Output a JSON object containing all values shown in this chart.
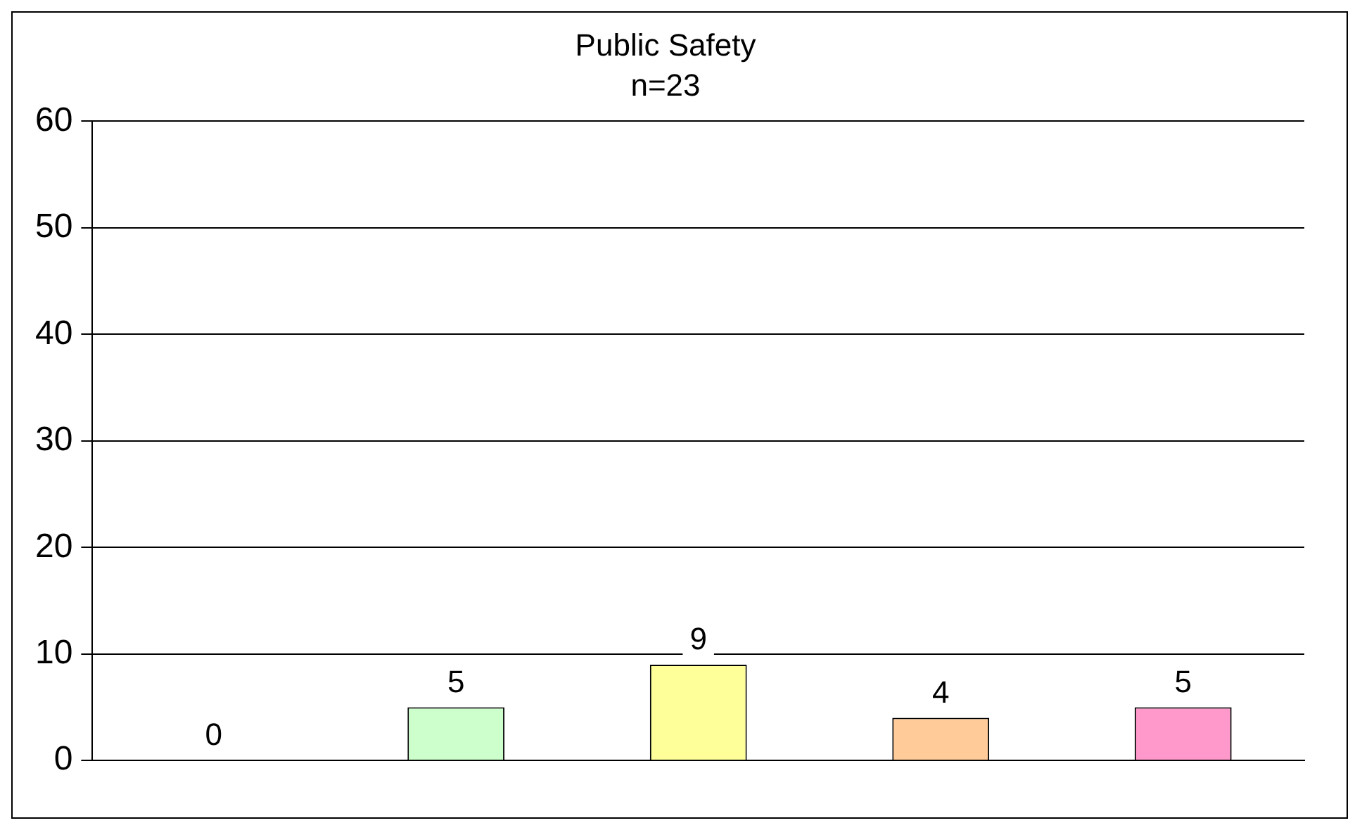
{
  "chart_data": {
    "type": "bar",
    "title": "Public Safety",
    "subtitle": "n=23",
    "categories": [
      null,
      null,
      null,
      null,
      null
    ],
    "values": [
      0,
      5,
      9,
      4,
      5
    ],
    "colors": [
      "#99ccff",
      "#ccffcc",
      "#ffff99",
      "#ffcc99",
      "#ff99cc"
    ],
    "ylim": [
      0,
      60
    ],
    "yticks": [
      0,
      10,
      20,
      30,
      40,
      50,
      60
    ],
    "grid": "y",
    "data_labels": true,
    "legend": false
  }
}
